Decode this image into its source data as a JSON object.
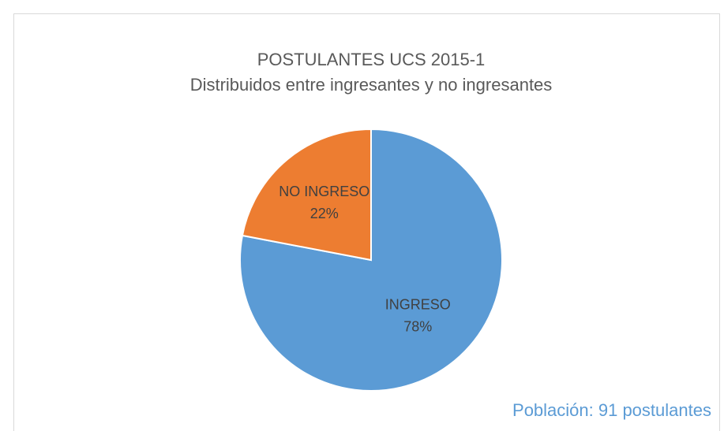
{
  "chart_data": {
    "type": "pie",
    "title": "POSTULANTES UCS 2015-1",
    "subtitle": "Distribuidos entre ingresantes y no ingresantes",
    "categories": [
      "INGRESO",
      "NO INGRESO"
    ],
    "values": [
      78,
      22
    ],
    "value_labels": [
      "78%",
      "22%"
    ],
    "colors": [
      "#5b9bd5",
      "#ed7d31"
    ],
    "annotation": "Población: 91 postulantes"
  }
}
